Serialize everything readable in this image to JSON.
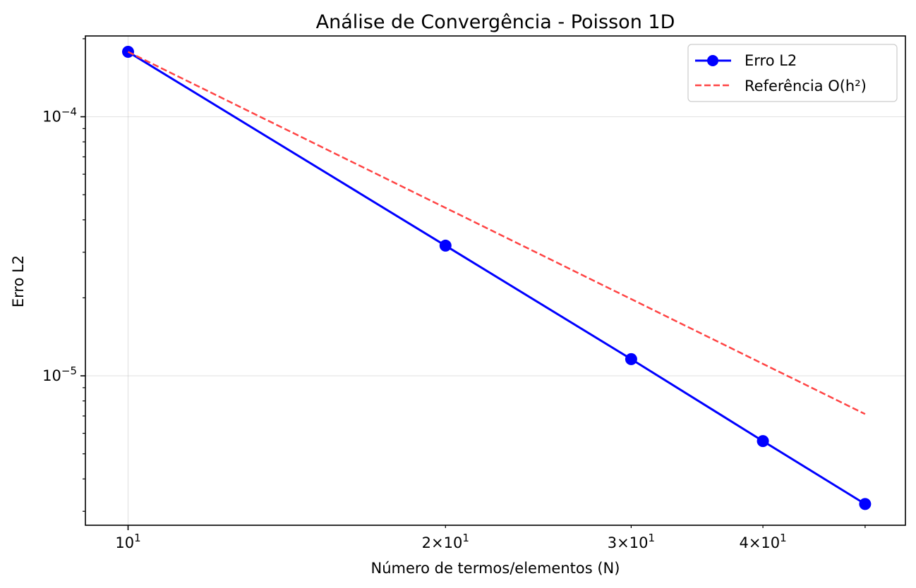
{
  "chart_data": {
    "type": "line",
    "title": "Análise de Convergência - Poisson 1D",
    "xlabel": "Número de termos/elementos (N)",
    "ylabel": "Erro L2",
    "x_scale": "log",
    "y_scale": "log",
    "xlim": [
      9.11,
      54.6
    ],
    "ylim": [
      2.65e-06,
      0.000205
    ],
    "grid": true,
    "legend_position": "top-right",
    "x_ticks": [
      {
        "value": 10,
        "mantissa": "",
        "base": "10",
        "exp": "1"
      },
      {
        "value": 20,
        "mantissa": "2×",
        "base": "10",
        "exp": "1"
      },
      {
        "value": 30,
        "mantissa": "3×",
        "base": "10",
        "exp": "1"
      },
      {
        "value": 40,
        "mantissa": "4×",
        "base": "10",
        "exp": "1"
      }
    ],
    "y_ticks": [
      {
        "value": 0.0001,
        "base": "10",
        "exp": "−4"
      },
      {
        "value": 1e-05,
        "base": "10",
        "exp": "−5"
      }
    ],
    "series": [
      {
        "name": "Erro L2",
        "color": "#0000ff",
        "style": "solid",
        "marker": "circle",
        "x": [
          10,
          20,
          30,
          40,
          50
        ],
        "y": [
          0.000178,
          3.18e-05,
          1.16e-05,
          5.6e-06,
          3.2e-06
        ]
      },
      {
        "name": "Referência O(h²)",
        "color": "#ff4444",
        "style": "dashed",
        "marker": "none",
        "x": [
          10,
          50
        ],
        "y": [
          0.000178,
          7.12e-06
        ]
      }
    ]
  }
}
